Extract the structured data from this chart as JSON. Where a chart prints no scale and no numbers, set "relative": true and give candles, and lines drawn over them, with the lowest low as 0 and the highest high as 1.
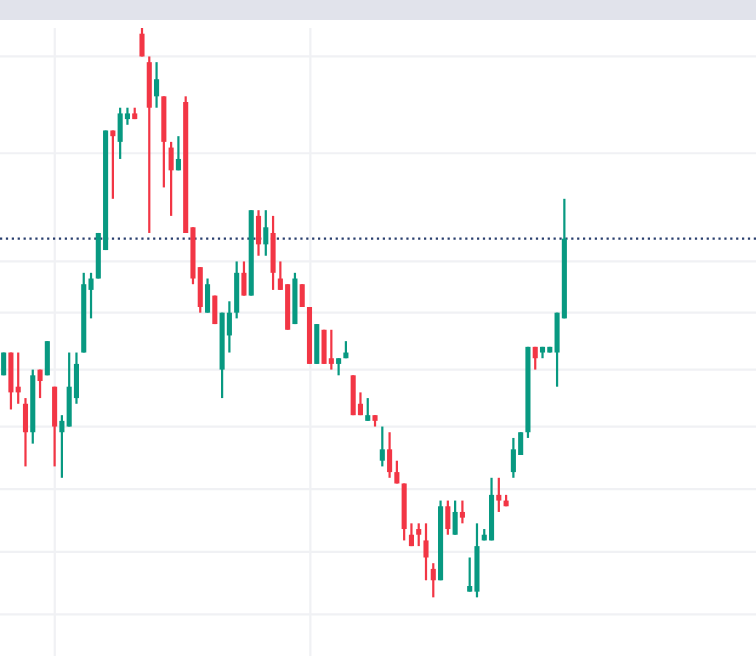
{
  "chart_data": {
    "type": "candlestick",
    "relative": true,
    "grid": true,
    "categories": [
      null,
      null,
      null,
      null,
      null,
      null,
      null,
      null,
      null,
      null,
      null,
      null,
      null,
      null,
      null,
      null,
      null,
      null,
      null,
      null,
      null,
      null,
      null,
      null,
      null,
      null,
      null,
      null,
      null,
      null,
      null,
      null,
      null,
      null,
      null,
      null,
      null,
      null,
      null,
      null,
      null,
      null,
      null,
      null,
      null,
      null,
      null,
      null,
      null,
      null,
      null,
      null,
      null,
      null,
      null,
      null,
      null,
      null,
      null,
      null,
      null,
      null,
      null,
      null,
      null,
      null,
      null,
      null,
      null,
      null,
      null,
      null,
      null,
      null,
      null,
      null,
      null,
      null
    ],
    "ohlc": [
      [
        0.39,
        0.43,
        0.39,
        0.43
      ],
      [
        0.43,
        0.43,
        0.33,
        0.36
      ],
      [
        0.37,
        0.43,
        0.34,
        0.36
      ],
      [
        0.34,
        0.35,
        0.23,
        0.29
      ],
      [
        0.29,
        0.4,
        0.27,
        0.39
      ],
      [
        0.4,
        0.4,
        0.35,
        0.38
      ],
      [
        0.39,
        0.45,
        0.39,
        0.45
      ],
      [
        0.37,
        0.37,
        0.23,
        0.3
      ],
      [
        0.29,
        0.32,
        0.21,
        0.31
      ],
      [
        0.3,
        0.43,
        0.3,
        0.37
      ],
      [
        0.35,
        0.43,
        0.34,
        0.41
      ],
      [
        0.43,
        0.57,
        0.43,
        0.55
      ],
      [
        0.54,
        0.57,
        0.49,
        0.56
      ],
      [
        0.56,
        0.64,
        0.56,
        0.64
      ],
      [
        0.61,
        0.82,
        0.61,
        0.82
      ],
      [
        0.82,
        0.82,
        0.7,
        0.81
      ],
      [
        0.8,
        0.86,
        0.77,
        0.85
      ],
      [
        0.84,
        0.86,
        0.83,
        0.85
      ],
      [
        0.85,
        0.86,
        0.84,
        0.84
      ],
      [
        0.99,
        1.0,
        0.95,
        0.95
      ],
      [
        0.94,
        0.95,
        0.64,
        0.86
      ],
      [
        0.88,
        0.94,
        0.86,
        0.91
      ],
      [
        0.88,
        0.88,
        0.72,
        0.8
      ],
      [
        0.79,
        0.8,
        0.67,
        0.75
      ],
      [
        0.75,
        0.81,
        0.75,
        0.77
      ],
      [
        0.87,
        0.88,
        0.64,
        0.64
      ],
      [
        0.65,
        0.65,
        0.55,
        0.56
      ],
      [
        0.58,
        0.58,
        0.5,
        0.51
      ],
      [
        0.5,
        0.56,
        0.5,
        0.55
      ],
      [
        0.53,
        0.53,
        0.48,
        0.48
      ],
      [
        0.4,
        0.5,
        0.35,
        0.5
      ],
      [
        0.46,
        0.52,
        0.43,
        0.5
      ],
      [
        0.5,
        0.59,
        0.49,
        0.57
      ],
      [
        0.57,
        0.59,
        0.53,
        0.53
      ],
      [
        0.53,
        0.68,
        0.53,
        0.68
      ],
      [
        0.67,
        0.68,
        0.6,
        0.62
      ],
      [
        0.62,
        0.68,
        0.6,
        0.65
      ],
      [
        0.64,
        0.67,
        0.54,
        0.57
      ],
      [
        0.56,
        0.59,
        0.54,
        0.54
      ],
      [
        0.55,
        0.55,
        0.47,
        0.47
      ],
      [
        0.48,
        0.57,
        0.48,
        0.56
      ],
      [
        0.55,
        0.55,
        0.51,
        0.51
      ],
      [
        0.51,
        0.51,
        0.41,
        0.41
      ],
      [
        0.41,
        0.48,
        0.41,
        0.48
      ],
      [
        0.47,
        0.47,
        0.41,
        0.41
      ],
      [
        0.42,
        0.47,
        0.4,
        0.41
      ],
      [
        0.41,
        0.42,
        0.39,
        0.42
      ],
      [
        0.42,
        0.45,
        0.42,
        0.43
      ],
      [
        0.39,
        0.39,
        0.32,
        0.32
      ],
      [
        0.34,
        0.36,
        0.32,
        0.32
      ],
      [
        0.31,
        0.35,
        0.31,
        0.32
      ],
      [
        0.32,
        0.32,
        0.3,
        0.31
      ],
      [
        0.24,
        0.3,
        0.23,
        0.26
      ],
      [
        0.26,
        0.29,
        0.21,
        0.22
      ],
      [
        0.22,
        0.24,
        0.2,
        0.2
      ],
      [
        0.2,
        0.2,
        0.1,
        0.12
      ],
      [
        0.11,
        0.13,
        0.09,
        0.09
      ],
      [
        0.12,
        0.13,
        0.09,
        0.11
      ],
      [
        0.1,
        0.13,
        0.03,
        0.07
      ],
      [
        0.05,
        0.06,
        0.0,
        0.03
      ],
      [
        0.03,
        0.17,
        0.03,
        0.16
      ],
      [
        0.16,
        0.17,
        0.11,
        0.12
      ],
      [
        0.11,
        0.17,
        0.11,
        0.15
      ],
      [
        0.15,
        0.17,
        0.13,
        0.14
      ],
      [
        0.01,
        0.07,
        0.01,
        0.02
      ],
      [
        0.01,
        0.13,
        0.0,
        0.09
      ],
      [
        0.1,
        0.12,
        0.1,
        0.11
      ],
      [
        0.1,
        0.21,
        0.1,
        0.18
      ],
      [
        0.18,
        0.21,
        0.15,
        0.17
      ],
      [
        0.17,
        0.18,
        0.16,
        0.16
      ],
      [
        0.22,
        0.28,
        0.21,
        0.26
      ],
      [
        0.25,
        0.29,
        0.25,
        0.29
      ],
      [
        0.29,
        0.44,
        0.28,
        0.44
      ],
      [
        0.44,
        0.44,
        0.4,
        0.42
      ],
      [
        0.43,
        0.44,
        0.42,
        0.44
      ],
      [
        0.43,
        0.44,
        0.43,
        0.44
      ],
      [
        0.43,
        0.5,
        0.37,
        0.5
      ],
      [
        0.49,
        0.7,
        0.49,
        0.63
      ]
    ],
    "colors": [
      "#089981",
      "#f23645",
      "#f23645",
      "#f23645",
      "#089981",
      "#f23645",
      "#089981",
      "#f23645",
      "#089981",
      "#089981",
      "#089981",
      "#089981",
      "#089981",
      "#089981",
      "#089981",
      "#f23645",
      "#089981",
      "#089981",
      "#f23645",
      "#f23645",
      "#f23645",
      "#089981",
      "#f23645",
      "#f23645",
      "#089981",
      "#f23645",
      "#f23645",
      "#f23645",
      "#089981",
      "#f23645",
      "#089981",
      "#089981",
      "#089981",
      "#f23645",
      "#089981",
      "#f23645",
      "#089981",
      "#f23645",
      "#f23645",
      "#f23645",
      "#089981",
      "#f23645",
      "#f23645",
      "#089981",
      "#f23645",
      "#f23645",
      "#089981",
      "#089981",
      "#f23645",
      "#f23645",
      "#089981",
      "#f23645",
      "#089981",
      "#f23645",
      "#f23645",
      "#f23645",
      "#f23645",
      "#f23645",
      "#f23645",
      "#f23645",
      "#089981",
      "#f23645",
      "#089981",
      "#f23645",
      "#089981",
      "#089981",
      "#089981",
      "#089981",
      "#f23645",
      "#f23645",
      "#089981",
      "#089981",
      "#089981",
      "#f23645",
      "#089981",
      "#089981",
      "#089981",
      "#089981"
    ],
    "ref_lines": [
      {
        "axis": "y",
        "value": 0.63,
        "color": "#2a3f6e",
        "line_style": "dotted"
      }
    ]
  }
}
